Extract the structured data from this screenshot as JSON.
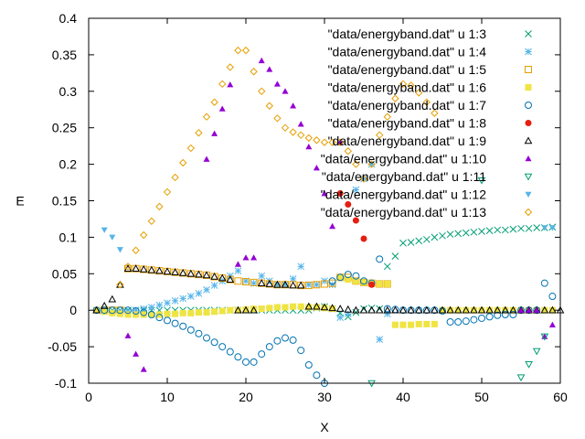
{
  "chart_data": {
    "type": "scatter",
    "xlabel": "X",
    "ylabel": "E",
    "xlim": [
      0,
      60
    ],
    "ylim": [
      -0.1,
      0.4
    ],
    "xticks": [
      0,
      10,
      20,
      30,
      40,
      50,
      60
    ],
    "yticks": [
      -0.1,
      -0.05,
      0,
      0.05,
      0.1,
      0.15,
      0.2,
      0.25,
      0.3,
      0.35,
      0.4
    ],
    "xtick_labels": [
      "0",
      "10",
      "20",
      "30",
      "40",
      "50",
      "60"
    ],
    "ytick_labels": [
      "-0.1",
      "-0.05",
      "0",
      "0.05",
      "0.1",
      "0.15",
      "0.2",
      "0.25",
      "0.3",
      "0.35",
      "0.4"
    ],
    "grid": false,
    "legend_position": "top-right",
    "series": [
      {
        "name": "\"data/energyband.dat\" u 1:3",
        "color": "#009e73",
        "marker": "x",
        "x": [
          1,
          2,
          3,
          4,
          5,
          6,
          7,
          8,
          9,
          10,
          11,
          12,
          13,
          14,
          15,
          16,
          17,
          18,
          19,
          20,
          21,
          22,
          23,
          24,
          25,
          26,
          27,
          28,
          29,
          30,
          31,
          32,
          33,
          34,
          35,
          36,
          37,
          38,
          39,
          40,
          41,
          42,
          43,
          44,
          45,
          46,
          47,
          48,
          49,
          50,
          51,
          52,
          53,
          54,
          55,
          56,
          57,
          58,
          59
        ],
        "y": [
          0,
          0,
          0,
          0,
          0,
          0,
          0,
          0,
          0,
          0,
          0,
          0,
          0,
          0,
          0,
          0,
          0,
          0,
          0,
          0,
          0,
          0,
          0,
          0,
          0,
          0,
          0,
          0,
          0.003,
          0.005,
          0.002,
          -0.004,
          -0.009,
          -0.003,
          0.002,
          0.003,
          0.002,
          0.06,
          0.074,
          0.092,
          0.093,
          0.095,
          0.097,
          0.1,
          0.102,
          0.104,
          0.105,
          0.106,
          0.107,
          0.108,
          0.109,
          0.11,
          0.11,
          0.111,
          0.112,
          0.112,
          0.113,
          0.113,
          0.114
        ]
      },
      {
        "name": "\"data/energyband.dat\" u 1:4",
        "color": "#56b4e9",
        "marker": "star",
        "x": [
          4,
          5,
          6,
          7,
          8,
          9,
          10,
          11,
          12,
          13,
          14,
          15,
          16,
          17,
          18,
          19,
          20,
          21,
          22,
          23,
          24,
          25,
          26,
          27,
          28,
          29,
          30,
          31,
          32,
          33,
          34,
          35,
          36,
          37,
          38
        ],
        "y": [
          -0.003,
          -0.002,
          0,
          0.002,
          0.004,
          0.007,
          0.01,
          0.013,
          0.016,
          0.019,
          0.023,
          0.028,
          0.034,
          0.04,
          0.047,
          0.054,
          0.04,
          0.037,
          0.047,
          0.04,
          0.035,
          0.035,
          0.043,
          0.06,
          0.035,
          0.035,
          0.04,
          0.035,
          -0.01,
          -0.005,
          0.165,
          0.18,
          0.2,
          -0.04,
          -0.005
        ]
      },
      {
        "name": "\"data/energyband.dat\" u 1:5",
        "color": "#e69f00",
        "marker": "square-open",
        "x": [
          2,
          3,
          4,
          5,
          6,
          7,
          8,
          9,
          10,
          11,
          12,
          13,
          14,
          15,
          16,
          17,
          18,
          19,
          20,
          21,
          22,
          23,
          24,
          25,
          26,
          27,
          28,
          29,
          30,
          31,
          32,
          33,
          34,
          35,
          36,
          37,
          38
        ],
        "y": [
          0,
          0,
          0,
          0.057,
          0.057,
          0.056,
          0.055,
          0.054,
          0.053,
          0.052,
          0.051,
          0.05,
          0.049,
          0.048,
          0.046,
          0.044,
          0.042,
          0.04,
          0.039,
          0.038,
          0.037,
          0.036,
          0.035,
          0.035,
          0.035,
          0.034,
          0.034,
          0.035,
          0.036,
          0.037,
          0.045,
          0.045,
          0.04,
          0.038,
          0.037,
          0.036,
          0.036
        ]
      },
      {
        "name": "\"data/energyband.dat\" u 1:6",
        "color": "#f0e442",
        "marker": "square-filled",
        "x": [
          1,
          2,
          3,
          4,
          5,
          6,
          7,
          8,
          9,
          10,
          11,
          12,
          13,
          14,
          15,
          16,
          17,
          18,
          19,
          20,
          21,
          22,
          23,
          24,
          25,
          26,
          27,
          28,
          29,
          30,
          31,
          32,
          33,
          34,
          35,
          36,
          37,
          38,
          39,
          40,
          41,
          42,
          43,
          44,
          45,
          46,
          47,
          48,
          49,
          50,
          51,
          52,
          53,
          54,
          55,
          56,
          57,
          58,
          59
        ],
        "y": [
          0,
          -0.002,
          -0.004,
          -0.005,
          -0.006,
          -0.006,
          -0.006,
          -0.006,
          -0.006,
          -0.005,
          -0.005,
          -0.004,
          -0.004,
          -0.003,
          -0.003,
          -0.002,
          -0.001,
          0,
          0,
          0.001,
          0.002,
          0.002,
          0.003,
          0.004,
          0.004,
          0.005,
          0.005,
          0.004,
          0.004,
          0.003,
          0.002,
          0.045,
          0.042,
          0.04,
          0.038,
          0.037,
          0.036,
          0.036,
          -0.02,
          -0.02,
          -0.02,
          -0.019,
          -0.019,
          -0.019,
          0,
          0,
          0,
          0,
          0,
          0,
          0,
          0,
          0,
          0,
          0,
          0,
          0,
          0,
          0
        ]
      },
      {
        "name": "\"data/energyband.dat\" u 1:7",
        "color": "#0072b2",
        "marker": "circle-open",
        "x": [
          1,
          2,
          3,
          4,
          5,
          6,
          7,
          8,
          9,
          10,
          11,
          12,
          13,
          14,
          15,
          16,
          17,
          18,
          19,
          20,
          21,
          22,
          23,
          24,
          25,
          26,
          27,
          28,
          29,
          30,
          31,
          32,
          33,
          34,
          35,
          36,
          37,
          38,
          39,
          40,
          41,
          42,
          43,
          44,
          45,
          46,
          47,
          48,
          49,
          50,
          51,
          52,
          53,
          54,
          55,
          56,
          57,
          58,
          59
        ],
        "y": [
          0,
          0,
          0,
          0,
          0,
          -0.001,
          -0.003,
          -0.006,
          -0.01,
          -0.014,
          -0.018,
          -0.022,
          -0.027,
          -0.032,
          -0.038,
          -0.044,
          -0.05,
          -0.057,
          -0.064,
          -0.071,
          -0.071,
          -0.06,
          -0.05,
          -0.042,
          -0.038,
          -0.041,
          -0.055,
          -0.075,
          -0.089,
          -0.1,
          0.04,
          0.045,
          0.049,
          0.047,
          0.04,
          0.037,
          0.07,
          0.002,
          0.001,
          0,
          0,
          0,
          0,
          0,
          -0.001,
          -0.016,
          -0.016,
          -0.015,
          -0.013,
          -0.011,
          -0.009,
          -0.007,
          -0.006,
          -0.006,
          0,
          0,
          0,
          0.037,
          0.019
        ]
      },
      {
        "name": "\"data/energyband.dat\" u 1:8",
        "color": "#e51e10",
        "marker": "circle-filled",
        "x": [
          32,
          33,
          34,
          35,
          36
        ],
        "y": [
          0.16,
          0.145,
          0.123,
          0.098,
          0.035
        ]
      },
      {
        "name": "\"data/energyband.dat\" u 1:9",
        "color": "#000000",
        "marker": "triangle-open",
        "x": [
          1,
          2,
          3,
          4,
          5,
          6,
          7,
          8,
          9,
          10,
          11,
          12,
          13,
          14,
          15,
          16,
          17,
          18,
          19,
          20,
          21,
          22,
          23,
          24,
          25,
          26,
          27,
          28,
          29,
          30,
          31,
          32,
          33,
          34,
          35,
          36,
          37,
          38,
          39,
          40,
          41,
          42,
          43,
          44,
          45,
          46,
          47,
          48,
          49,
          50,
          51,
          52,
          53,
          54,
          55,
          56,
          57,
          58,
          59,
          60
        ],
        "y": [
          0,
          0.006,
          0.015,
          0.035,
          0.057,
          0.057,
          0.056,
          0.055,
          0.054,
          0.053,
          0.052,
          0.051,
          0.05,
          0.049,
          0.048,
          0.046,
          0.044,
          0.042,
          0,
          0,
          0,
          0.037,
          0.036,
          0.035,
          0.035,
          0.034,
          0.034,
          0.005,
          0.005,
          0.004,
          0.003,
          0.002,
          0.001,
          0,
          0,
          0,
          0,
          0,
          0,
          0,
          0,
          0,
          0,
          0,
          0,
          0,
          0,
          0,
          0,
          0,
          0,
          0,
          0,
          0,
          0,
          0,
          0,
          0,
          0,
          0
        ]
      },
      {
        "name": "\"data/energyband.dat\" u 1:10",
        "color": "#9400d3",
        "marker": "triangle-filled",
        "x": [
          5,
          6,
          7,
          15,
          16,
          17,
          18,
          19,
          20,
          21,
          22,
          23,
          24,
          25,
          26,
          27,
          28,
          29,
          30,
          31,
          32,
          55,
          56,
          57,
          58,
          59
        ],
        "y": [
          -0.035,
          -0.06,
          -0.081,
          0.207,
          0.242,
          0.276,
          0.309,
          0.063,
          0.072,
          0.072,
          0.342,
          0.33,
          0.31,
          0.3,
          0.28,
          0.255,
          0.224,
          0.195,
          0.16,
          0.115,
          0.23,
          0,
          0,
          0,
          -0.036,
          -0.02
        ]
      },
      {
        "name": "\"data/energyband.dat\" u 1:11",
        "color": "#009e73",
        "marker": "triangle-down-open",
        "x": [
          36,
          50,
          55,
          56,
          57,
          58
        ],
        "y": [
          -0.1,
          0.178,
          -0.092,
          -0.074,
          -0.056,
          -0.036
        ]
      },
      {
        "name": "\"data/energyband.dat\" u 1:12",
        "color": "#56b4e9",
        "marker": "triangle-down-filled",
        "x": [
          2,
          3,
          4,
          58,
          59
        ],
        "y": [
          0.11,
          0.1,
          0.083,
          0.113,
          0.113
        ]
      },
      {
        "name": "\"data/energyband.dat\" u 1:13",
        "color": "#e69f00",
        "marker": "diamond-open",
        "x": [
          4,
          5,
          6,
          7,
          8,
          9,
          10,
          11,
          12,
          13,
          14,
          15,
          16,
          17,
          18,
          19,
          20,
          21,
          22,
          23,
          24,
          25,
          26,
          27,
          28,
          29,
          30,
          31,
          32,
          33,
          34,
          35,
          36,
          37,
          38,
          39,
          40,
          41,
          42,
          43,
          44
        ],
        "y": [
          0.035,
          0.06,
          0.082,
          0.103,
          0.122,
          0.142,
          0.162,
          0.182,
          0.202,
          0.222,
          0.243,
          0.265,
          0.285,
          0.31,
          0.333,
          0.356,
          0.356,
          0.327,
          0.3,
          0.28,
          0.263,
          0.25,
          0.244,
          0.24,
          0.236,
          0.233,
          0.23,
          0.23,
          0.23,
          0.218,
          0.2,
          0.18,
          0.2,
          0.24,
          0.265,
          0.29,
          0.31,
          0.308,
          0.298,
          0.285,
          0.27
        ]
      }
    ]
  }
}
